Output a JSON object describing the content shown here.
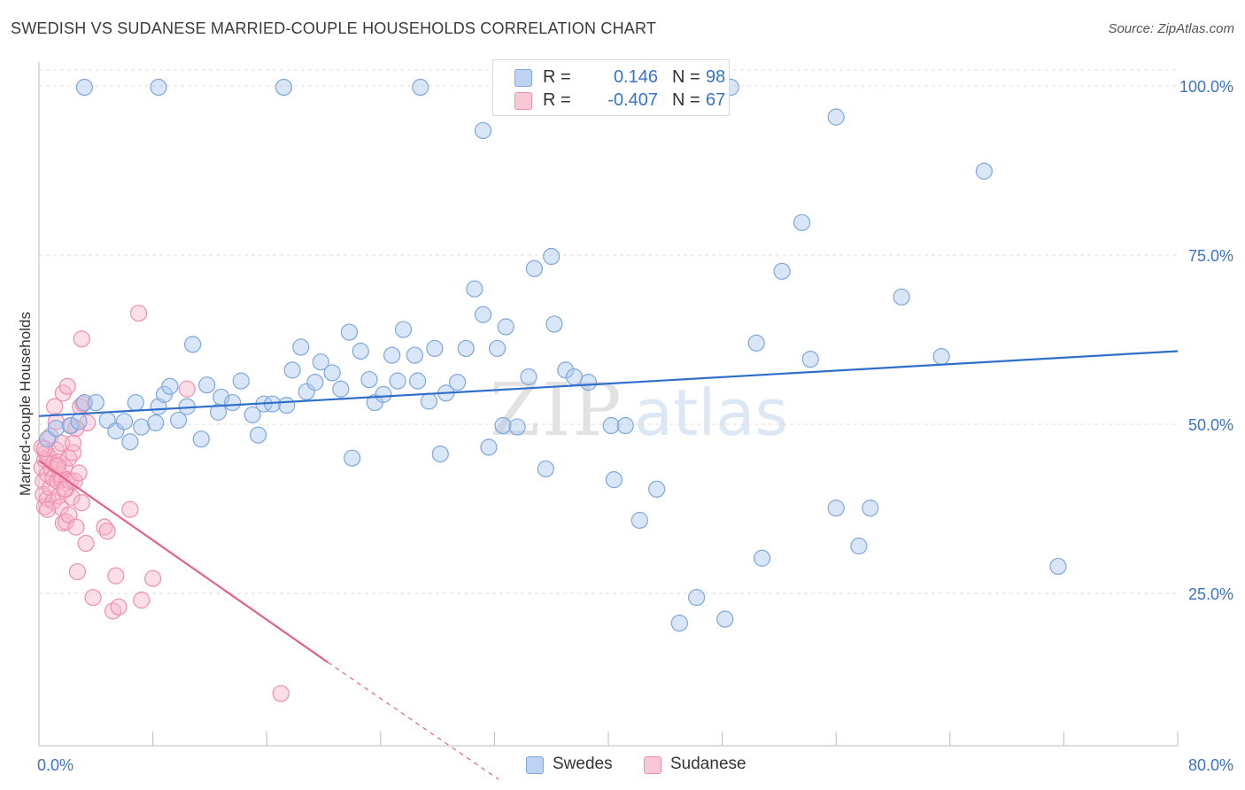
{
  "header": {
    "title": "SWEDISH VS SUDANESE MARRIED-COUPLE HOUSEHOLDS CORRELATION CHART",
    "source": "Source: ZipAtlas.com"
  },
  "legend": {
    "r_label": "R =",
    "n_label": "N =",
    "swedes": {
      "r": "0.146",
      "n": "98"
    },
    "sudanese": {
      "r": "-0.407",
      "n": "67"
    }
  },
  "bottom_legend": {
    "swedes": "Swedes",
    "sudanese": "Sudanese"
  },
  "watermark": {
    "zip": "ZIP",
    "atlas": "atlas"
  },
  "colors": {
    "swedes_fill": "#a9c7ee",
    "swedes_stroke": "#7ea7dd",
    "swedes_line": "#2f6fcb",
    "sudanese_fill": "#f7b6c9",
    "sudanese_stroke": "#ee8fac",
    "sudanese_line": "#e4618d",
    "axis_text": "#3a72c4"
  },
  "chart_data": {
    "type": "scatter",
    "title": "SWEDISH VS SUDANESE MARRIED-COUPLE HOUSEHOLDS CORRELATION CHART",
    "xlabel": "",
    "ylabel": "Married-couple Households",
    "xlim": [
      0,
      80
    ],
    "ylim": [
      0,
      102
    ],
    "x_tick_labels": [
      "0.0%",
      "80.0%"
    ],
    "y_tick_labels": [
      "25.0%",
      "50.0%",
      "75.0%",
      "100.0%"
    ],
    "y_ticks": [
      25,
      50,
      75,
      100
    ],
    "grid": true,
    "legend_position": "top-center",
    "series": [
      {
        "name": "Swedes",
        "r": 0.146,
        "n": 98,
        "trend": {
          "x": [
            0,
            80
          ],
          "y": [
            51.2,
            60.8
          ]
        },
        "points": [
          [
            0.6,
            47.8
          ],
          [
            1.2,
            49.4
          ],
          [
            2.2,
            49.8
          ],
          [
            2.8,
            50.4
          ],
          [
            3.2,
            53.2
          ],
          [
            4.0,
            53.2
          ],
          [
            4.8,
            50.6
          ],
          [
            5.4,
            49.0
          ],
          [
            6.0,
            50.4
          ],
          [
            6.4,
            47.4
          ],
          [
            6.8,
            53.2
          ],
          [
            7.2,
            49.6
          ],
          [
            8.2,
            50.2
          ],
          [
            8.4,
            52.6
          ],
          [
            8.8,
            54.4
          ],
          [
            9.2,
            55.6
          ],
          [
            9.8,
            50.6
          ],
          [
            10.4,
            52.6
          ],
          [
            10.8,
            61.8
          ],
          [
            11.4,
            47.8
          ],
          [
            11.8,
            55.8
          ],
          [
            12.6,
            51.8
          ],
          [
            12.8,
            54.0
          ],
          [
            13.6,
            53.2
          ],
          [
            14.2,
            56.4
          ],
          [
            15.0,
            51.4
          ],
          [
            15.4,
            48.4
          ],
          [
            15.8,
            53.0
          ],
          [
            16.4,
            53.0
          ],
          [
            17.4,
            52.8
          ],
          [
            17.8,
            58.0
          ],
          [
            18.4,
            61.4
          ],
          [
            18.8,
            54.8
          ],
          [
            19.4,
            56.2
          ],
          [
            19.8,
            59.2
          ],
          [
            20.6,
            57.6
          ],
          [
            21.2,
            55.2
          ],
          [
            21.8,
            63.6
          ],
          [
            22.0,
            45.0
          ],
          [
            22.6,
            60.8
          ],
          [
            23.2,
            56.6
          ],
          [
            23.6,
            53.2
          ],
          [
            24.2,
            54.4
          ],
          [
            24.8,
            60.2
          ],
          [
            25.2,
            56.4
          ],
          [
            25.6,
            64.0
          ],
          [
            26.4,
            60.2
          ],
          [
            26.6,
            56.4
          ],
          [
            27.4,
            53.4
          ],
          [
            27.8,
            61.2
          ],
          [
            28.2,
            45.6
          ],
          [
            28.6,
            54.6
          ],
          [
            29.4,
            56.2
          ],
          [
            30.0,
            61.2
          ],
          [
            30.6,
            70.0
          ],
          [
            31.2,
            66.2
          ],
          [
            31.6,
            46.6
          ],
          [
            31.2,
            93.4
          ],
          [
            32.2,
            61.2
          ],
          [
            32.6,
            49.8
          ],
          [
            32.8,
            64.4
          ],
          [
            33.6,
            49.6
          ],
          [
            34.4,
            57.0
          ],
          [
            34.8,
            73.0
          ],
          [
            35.6,
            43.4
          ],
          [
            36.0,
            74.8
          ],
          [
            36.2,
            64.8
          ],
          [
            37.0,
            58.0
          ],
          [
            37.6,
            57.0
          ],
          [
            38.6,
            56.2
          ],
          [
            40.2,
            49.8
          ],
          [
            40.4,
            41.8
          ],
          [
            41.2,
            49.8
          ],
          [
            42.2,
            35.8
          ],
          [
            43.4,
            40.4
          ],
          [
            46.2,
            24.4
          ],
          [
            45.0,
            20.6
          ],
          [
            48.2,
            21.2
          ],
          [
            50.4,
            62.0
          ],
          [
            50.8,
            30.2
          ],
          [
            52.2,
            72.6
          ],
          [
            53.6,
            79.8
          ],
          [
            54.2,
            59.6
          ],
          [
            56.0,
            37.6
          ],
          [
            56.0,
            95.4
          ],
          [
            57.6,
            32.0
          ],
          [
            58.4,
            37.6
          ],
          [
            60.6,
            68.8
          ],
          [
            63.4,
            60.0
          ],
          [
            66.4,
            87.4
          ],
          [
            71.6,
            29.0
          ],
          [
            43.2,
            99.8
          ],
          [
            48.6,
            99.8
          ],
          [
            37.0,
            99.8
          ],
          [
            26.8,
            99.8
          ],
          [
            17.2,
            99.8
          ],
          [
            8.4,
            99.8
          ],
          [
            3.2,
            99.8
          ]
        ]
      },
      {
        "name": "Sudanese",
        "r": -0.407,
        "n": 67,
        "trend": {
          "x": [
            0,
            20.3
          ],
          "y": [
            44.6,
            14.8
          ]
        },
        "trend_dashed": {
          "x": [
            20.3,
            32.3
          ],
          "y": [
            14.8,
            -2.5
          ]
        },
        "points": [
          [
            0.2,
            43.6
          ],
          [
            0.3,
            41.6
          ],
          [
            0.3,
            39.6
          ],
          [
            0.4,
            44.8
          ],
          [
            0.4,
            37.8
          ],
          [
            0.5,
            45.8
          ],
          [
            0.6,
            42.6
          ],
          [
            0.6,
            39.0
          ],
          [
            0.7,
            45.2
          ],
          [
            0.8,
            48.2
          ],
          [
            0.8,
            40.6
          ],
          [
            0.9,
            43.4
          ],
          [
            1.0,
            44.2
          ],
          [
            1.0,
            42.0
          ],
          [
            1.0,
            38.6
          ],
          [
            1.1,
            52.6
          ],
          [
            1.2,
            50.4
          ],
          [
            1.2,
            46.2
          ],
          [
            1.3,
            41.6
          ],
          [
            1.4,
            44.4
          ],
          [
            1.4,
            39.4
          ],
          [
            1.5,
            42.6
          ],
          [
            1.5,
            37.8
          ],
          [
            1.6,
            47.2
          ],
          [
            1.6,
            41.8
          ],
          [
            1.7,
            54.6
          ],
          [
            1.7,
            35.4
          ],
          [
            1.8,
            43.6
          ],
          [
            1.9,
            40.4
          ],
          [
            1.9,
            35.6
          ],
          [
            2.0,
            55.6
          ],
          [
            2.0,
            41.8
          ],
          [
            2.1,
            45.0
          ],
          [
            2.1,
            36.6
          ],
          [
            2.2,
            41.6
          ],
          [
            2.3,
            49.8
          ],
          [
            2.3,
            39.2
          ],
          [
            2.4,
            45.8
          ],
          [
            2.5,
            41.6
          ],
          [
            2.6,
            34.8
          ],
          [
            2.7,
            28.2
          ],
          [
            2.8,
            42.8
          ],
          [
            2.9,
            52.6
          ],
          [
            3.0,
            38.4
          ],
          [
            3.0,
            62.6
          ],
          [
            3.1,
            53.0
          ],
          [
            3.3,
            32.4
          ],
          [
            3.4,
            50.2
          ],
          [
            3.8,
            24.4
          ],
          [
            4.6,
            34.8
          ],
          [
            4.8,
            34.2
          ],
          [
            5.2,
            22.4
          ],
          [
            5.4,
            27.6
          ],
          [
            5.6,
            23.0
          ],
          [
            6.4,
            37.4
          ],
          [
            7.0,
            66.4
          ],
          [
            7.2,
            24.0
          ],
          [
            8.0,
            27.2
          ],
          [
            10.4,
            55.2
          ],
          [
            17.0,
            10.2
          ],
          [
            0.2,
            46.6
          ],
          [
            0.4,
            46.4
          ],
          [
            0.6,
            37.4
          ],
          [
            1.3,
            43.8
          ],
          [
            1.8,
            40.4
          ],
          [
            2.4,
            47.2
          ],
          [
            2.6,
            49.4
          ]
        ]
      }
    ]
  }
}
